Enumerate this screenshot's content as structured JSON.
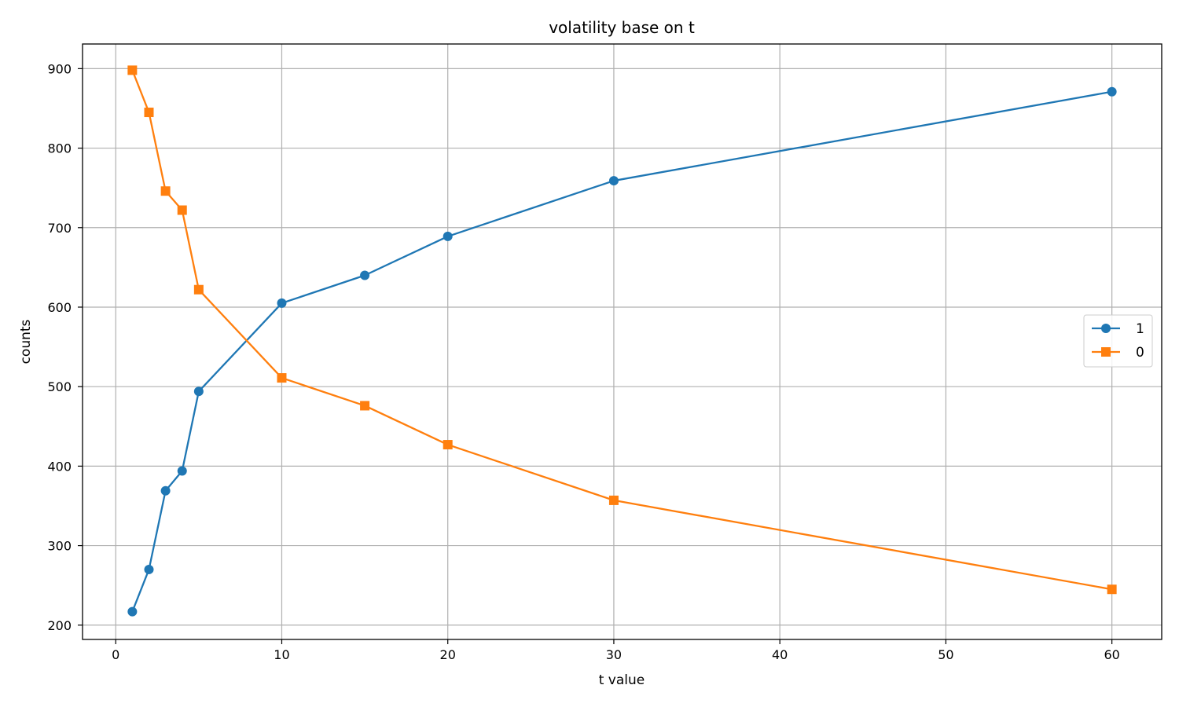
{
  "chart_data": {
    "type": "line",
    "title": "volatility base on t",
    "xlabel": "t value",
    "ylabel": "counts",
    "xlim": [
      -2,
      63
    ],
    "ylim": [
      182,
      931
    ],
    "xticks": [
      0,
      10,
      20,
      30,
      40,
      50,
      60
    ],
    "yticks": [
      200,
      300,
      400,
      500,
      600,
      700,
      800,
      900
    ],
    "grid": true,
    "legend_position": "center-right",
    "x": [
      1,
      2,
      3,
      4,
      5,
      10,
      15,
      20,
      30,
      60
    ],
    "series": [
      {
        "name": "1",
        "color": "#1f77b4",
        "marker": "circle",
        "values": [
          217,
          270,
          369,
          394,
          494,
          605,
          640,
          689,
          759,
          871
        ]
      },
      {
        "name": "0",
        "color": "#ff7f0e",
        "marker": "square",
        "values": [
          898,
          845,
          746,
          722,
          622,
          511,
          476,
          427,
          357,
          245
        ]
      }
    ]
  }
}
